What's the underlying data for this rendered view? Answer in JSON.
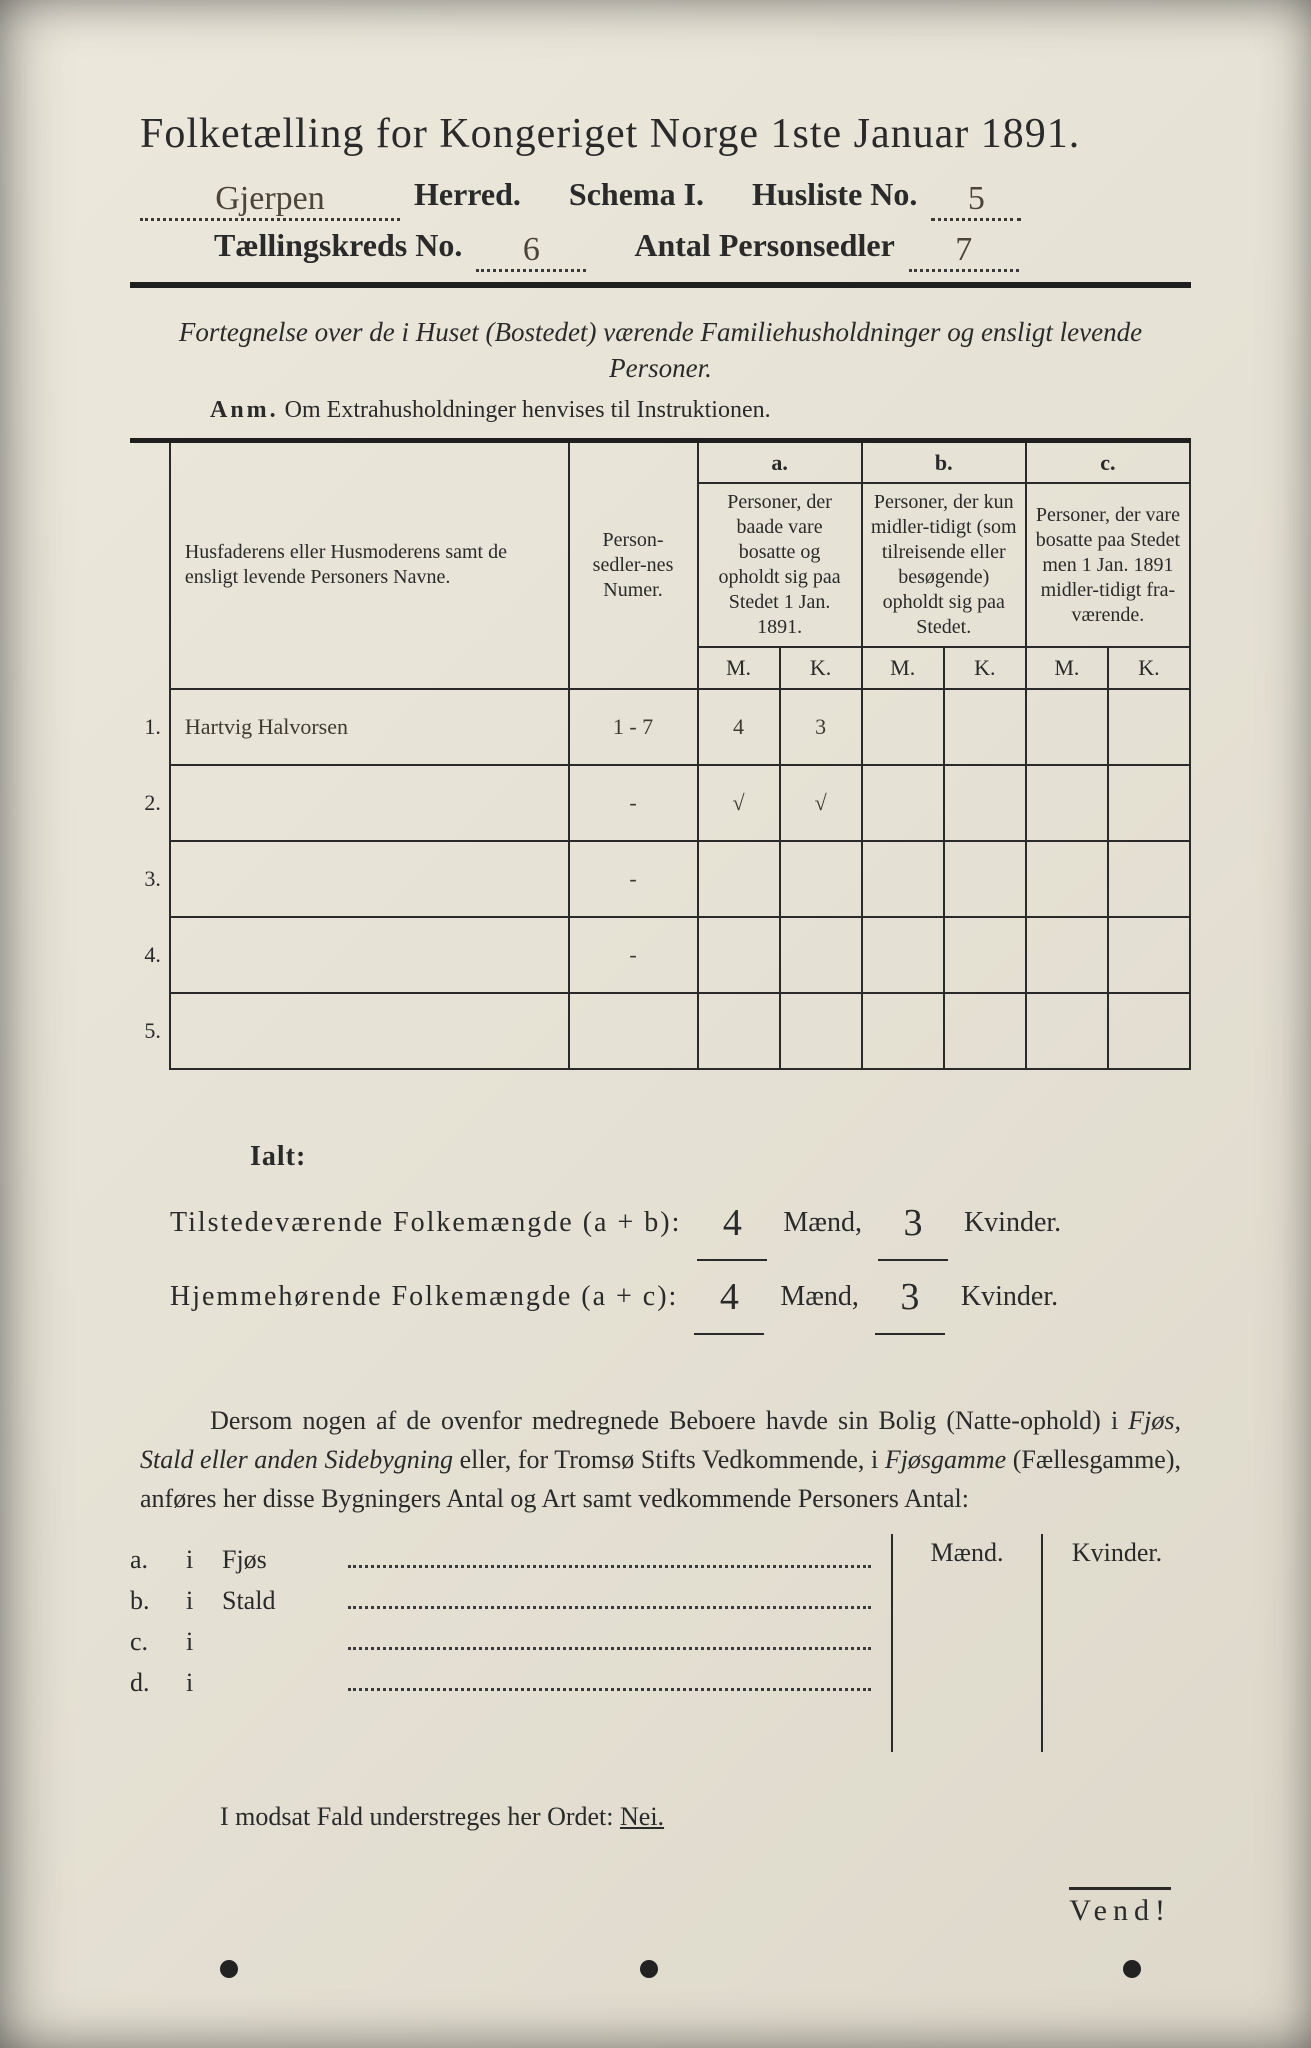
{
  "colors": {
    "paper_bg": "#e5e1d4",
    "ink": "#2a2a2a",
    "handwriting": "#3f3a30"
  },
  "title": "Folketælling for Kongeriget Norge 1ste Januar 1891.",
  "header": {
    "herred_value": "Gjerpen",
    "herred_label": "Herred.",
    "schema_label": "Schema I.",
    "husliste_label": "Husliste No.",
    "husliste_value": "5",
    "kreds_label": "Tællingskreds No.",
    "kreds_value": "6",
    "antal_label": "Antal Personsedler",
    "antal_value": "7"
  },
  "intro": "Fortegnelse over de i Huset (Bostedet) værende Familiehusholdninger og ensligt levende Personer.",
  "anm_lead": "Anm.",
  "anm_text": "Om Extrahusholdninger henvises til Instruktionen.",
  "table": {
    "col_names_header": "Husfaderens eller Husmoderens samt de ensligt levende Personers Navne.",
    "col_numer_header": "Person-sedler-nes Numer.",
    "a_label": "a.",
    "a_text": "Personer, der baade vare bosatte og opholdt sig paa Stedet 1 Jan. 1891.",
    "b_label": "b.",
    "b_text": "Personer, der kun midler-tidigt (som tilreisende eller besøgende) opholdt sig paa Stedet.",
    "c_label": "c.",
    "c_text": "Personer, der vare bosatte paa Stedet men 1 Jan. 1891 midler-tidigt fra-værende.",
    "M": "M.",
    "K": "K.",
    "rows": [
      {
        "n": "1.",
        "name": "Hartvig Halvorsen",
        "numer": "1 - 7",
        "aM": "4",
        "aK": "3",
        "bM": "",
        "bK": "",
        "cM": "",
        "cK": ""
      },
      {
        "n": "2.",
        "name": "",
        "numer": "-",
        "aM": "√",
        "aK": "√",
        "bM": "",
        "bK": "",
        "cM": "",
        "cK": ""
      },
      {
        "n": "3.",
        "name": "",
        "numer": "-",
        "aM": "",
        "aK": "",
        "bM": "",
        "bK": "",
        "cM": "",
        "cK": ""
      },
      {
        "n": "4.",
        "name": "",
        "numer": "-",
        "aM": "",
        "aK": "",
        "bM": "",
        "bK": "",
        "cM": "",
        "cK": ""
      },
      {
        "n": "5.",
        "name": "",
        "numer": "",
        "aM": "",
        "aK": "",
        "bM": "",
        "bK": "",
        "cM": "",
        "cK": ""
      }
    ]
  },
  "totals": {
    "ialt": "Ialt:",
    "line1_label": "Tilstedeværende Folkemængde (a + b):",
    "line2_label": "Hjemmehørende Folkemængde (a + c):",
    "maend": "Mænd,",
    "kvinder": "Kvinder.",
    "l1_m": "4",
    "l1_k": "3",
    "l2_m": "4",
    "l2_k": "3"
  },
  "dersom": {
    "text1": "Dersom nogen af de ovenfor medregnede Beboere havde sin Bolig (Natte-ophold) i ",
    "it1": "Fjøs, Stald eller anden Sidebygning",
    "text2": " eller, for Tromsø Stifts Vedkommende, i ",
    "it2": "Fjøsgamme",
    "text3": " (Fællesgamme), anføres her disse Bygningers Antal og Art samt vedkommende Personers Antal:"
  },
  "side": {
    "maend": "Mænd.",
    "kvinder": "Kvinder.",
    "opts": [
      {
        "l": "a.",
        "i": "i",
        "name": "Fjøs"
      },
      {
        "l": "b.",
        "i": "i",
        "name": "Stald"
      },
      {
        "l": "c.",
        "i": "i",
        "name": ""
      },
      {
        "l": "d.",
        "i": "i",
        "name": ""
      }
    ]
  },
  "nei_line_pre": "I modsat Fald understreges her Ordet: ",
  "nei": "Nei.",
  "vend": "Vend!"
}
